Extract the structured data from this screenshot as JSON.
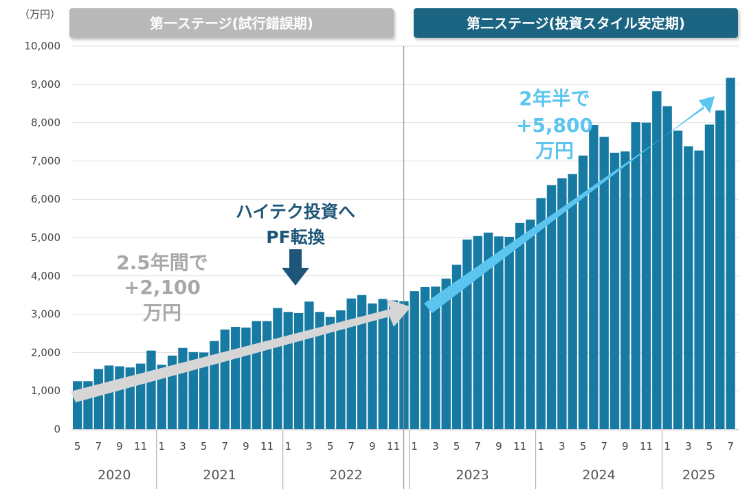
{
  "unit_label": "（万円）",
  "stages": [
    {
      "label": "第一ステージ(試行錯誤期)",
      "color": "#b9b9b9"
    },
    {
      "label": "第二ステージ(投資スタイル安定期)",
      "color": "#1f6582"
    }
  ],
  "annotations": {
    "stage1_gain": [
      "2.5年間で",
      "+2,100",
      "万円"
    ],
    "pivot": [
      "ハイテク投資へ",
      "PF転換"
    ],
    "stage2_gain": [
      "2年半で",
      "+5,800",
      "万円"
    ]
  },
  "colors": {
    "bar": "#167aa3",
    "stage1_arrow": "#d6d6d6",
    "stage2_arrow": "#5bc5ef",
    "stage1_text": "#a8a8a8",
    "pivot_text": "#1d5678",
    "stage2_text": "#5bc5ef",
    "grid": "#dddddd"
  },
  "chart_data": {
    "type": "bar",
    "ylim": [
      0,
      10000
    ],
    "yticks": [
      "0",
      "1,000",
      "2,000",
      "3,000",
      "4,000",
      "5,000",
      "6,000",
      "7,000",
      "8,000",
      "9,000",
      "10,000"
    ],
    "grid": true,
    "years": [
      "2020",
      "2021",
      "2022",
      "2023",
      "2024",
      "2025"
    ],
    "x_tick_labels": [
      "5",
      "",
      "7",
      "",
      "9",
      "",
      "11",
      "",
      "1",
      "",
      "3",
      "",
      "5",
      "",
      "7",
      "",
      "9",
      "",
      "11",
      "",
      "1",
      "",
      "3",
      "",
      "5",
      "",
      "7",
      "",
      "9",
      "",
      "11",
      "",
      "1",
      "",
      "3",
      "",
      "5",
      "",
      "7",
      "",
      "9",
      "",
      "11",
      "",
      "1",
      "",
      "3",
      "",
      "5",
      "",
      "7",
      "",
      "9",
      "",
      "11",
      "",
      "1",
      "",
      "3",
      "",
      "5",
      "",
      "7"
    ],
    "months": [
      "2020-05",
      "2020-06",
      "2020-07",
      "2020-08",
      "2020-09",
      "2020-10",
      "2020-11",
      "2020-12",
      "2021-01",
      "2021-02",
      "2021-03",
      "2021-04",
      "2021-05",
      "2021-06",
      "2021-07",
      "2021-08",
      "2021-09",
      "2021-10",
      "2021-11",
      "2021-12",
      "2022-01",
      "2022-02",
      "2022-03",
      "2022-04",
      "2022-05",
      "2022-06",
      "2022-07",
      "2022-08",
      "2022-09",
      "2022-10",
      "2022-11",
      "2022-12",
      "2023-01",
      "2023-02",
      "2023-03",
      "2023-04",
      "2023-05",
      "2023-06",
      "2023-07",
      "2023-08",
      "2023-09",
      "2023-10",
      "2023-11",
      "2023-12",
      "2024-01",
      "2024-02",
      "2024-03",
      "2024-04",
      "2024-05",
      "2024-06",
      "2024-07",
      "2024-08",
      "2024-09",
      "2024-10",
      "2024-11",
      "2024-12",
      "2025-01",
      "2025-02",
      "2025-03",
      "2025-04",
      "2025-05",
      "2025-06",
      "2025-07"
    ],
    "values": [
      1250,
      1250,
      1570,
      1660,
      1640,
      1610,
      1710,
      2050,
      1680,
      1920,
      2120,
      2010,
      2000,
      2300,
      2600,
      2670,
      2650,
      2820,
      2820,
      3160,
      3060,
      3030,
      3330,
      3060,
      2930,
      3100,
      3410,
      3500,
      3280,
      3400,
      3360,
      3340,
      3600,
      3710,
      3720,
      3930,
      4290,
      4950,
      5040,
      5130,
      5030,
      5020,
      5380,
      5470,
      6030,
      6370,
      6550,
      6660,
      7140,
      7940,
      7630,
      7210,
      7250,
      8010,
      8000,
      8820,
      8430,
      7790,
      7380,
      7270,
      7950,
      8320,
      9170
    ]
  }
}
